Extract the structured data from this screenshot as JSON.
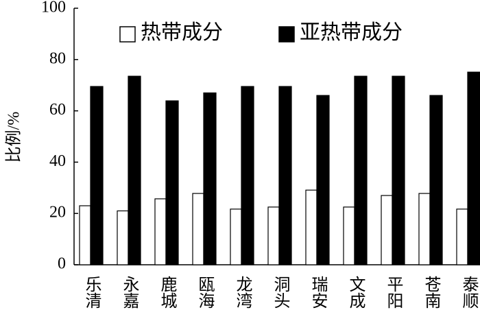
{
  "chart_data": {
    "type": "bar",
    "ylabel": "比例/%",
    "categories": [
      "乐清",
      "永嘉",
      "鹿城",
      "瓯海",
      "龙湾",
      "洞头",
      "瑞安",
      "文成",
      "平阳",
      "苍南",
      "泰顺"
    ],
    "series": [
      {
        "name": "热带成分",
        "color": "#ffffff",
        "edgecolor": "#000000",
        "values": [
          23,
          21,
          25.7,
          27.8,
          21.7,
          22.5,
          29.1,
          22.5,
          27,
          27.8,
          21.7
        ]
      },
      {
        "name": "亚热带成分",
        "color": "#000000",
        "edgecolor": "#000000",
        "values": [
          69.5,
          73.5,
          63.9,
          67,
          69.5,
          69.5,
          66,
          73.5,
          73.5,
          66,
          75.1
        ]
      }
    ],
    "ylim": [
      0,
      100
    ],
    "yticks": [
      0,
      20,
      40,
      60,
      80,
      100
    ],
    "legend": "top",
    "grid": false
  }
}
